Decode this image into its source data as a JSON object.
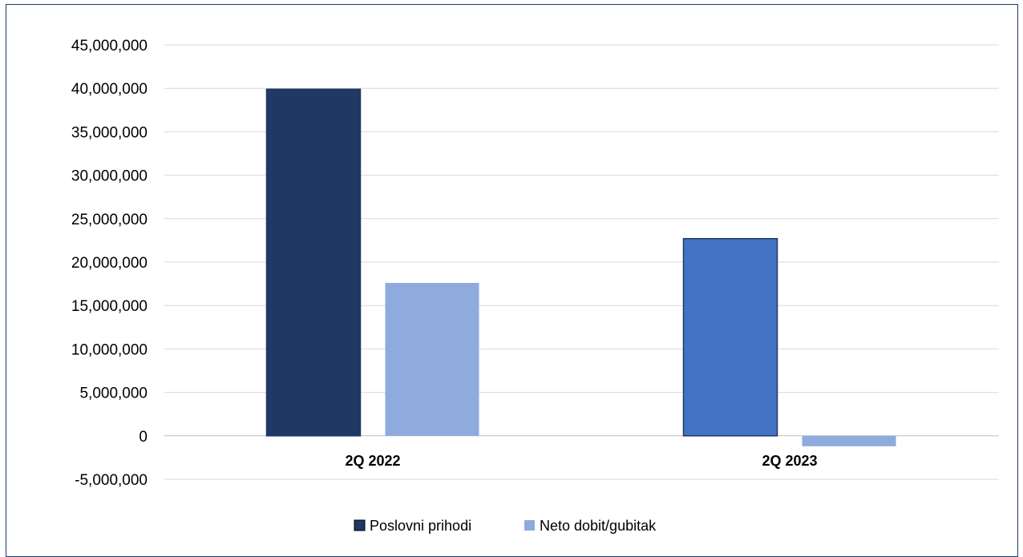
{
  "chart_data": {
    "type": "bar",
    "categories": [
      "2Q 2022",
      "2Q 2023"
    ],
    "series": [
      {
        "name": "Poslovni prihodi",
        "values": [
          39900000,
          22700000
        ],
        "colors": [
          "#203864",
          "#4472c4"
        ]
      },
      {
        "name": "Neto dobit/gubitak",
        "values": [
          17600000,
          -1200000
        ],
        "colors": [
          "#8faadc",
          "#8faadc"
        ]
      }
    ],
    "title": "",
    "xlabel": "",
    "ylabel": "",
    "ylim": [
      -5000000,
      45000000
    ],
    "yticks": [
      {
        "value": -5000000,
        "label": "-5,000,000"
      },
      {
        "value": 0,
        "label": "0"
      },
      {
        "value": 5000000,
        "label": "5,000,000"
      },
      {
        "value": 10000000,
        "label": "10,000,000"
      },
      {
        "value": 15000000,
        "label": "15,000,000"
      },
      {
        "value": 20000000,
        "label": "20,000,000"
      },
      {
        "value": 25000000,
        "label": "25,000,000"
      },
      {
        "value": 30000000,
        "label": "30,000,000"
      },
      {
        "value": 35000000,
        "label": "35,000,000"
      },
      {
        "value": 40000000,
        "label": "40,000,000"
      },
      {
        "value": 45000000,
        "label": "45,000,000"
      }
    ],
    "grid": true,
    "legend": {
      "position": "bottom",
      "entries": [
        {
          "label": "Poslovni prihodi",
          "color": "#203864"
        },
        {
          "label": "Neto dobit/gubitak",
          "color": "#8faadc"
        }
      ]
    },
    "colors": {
      "grid": "#d9d9d9",
      "border": "#213a63",
      "bar_outline": "#203864"
    }
  }
}
